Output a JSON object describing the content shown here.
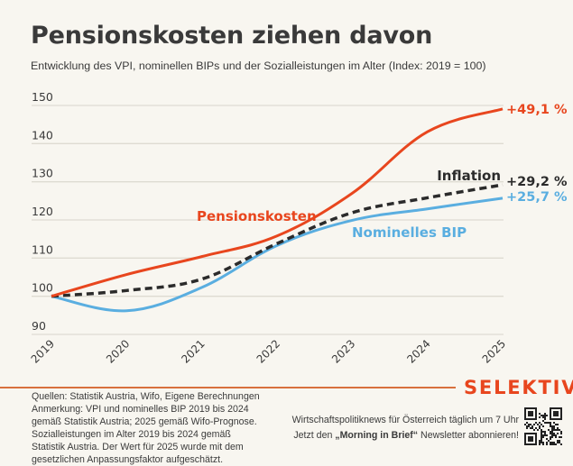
{
  "header": {
    "title": "Pensionskosten ziehen davon",
    "subtitle": "Entwicklung des VPI, nominellen BIPs und der Sozialleistungen im Alter (Index: 2019 = 100)"
  },
  "chart_data": {
    "type": "line",
    "title": "Pensionskosten ziehen davon",
    "subtitle": "Entwicklung des VPI, nominellen BIPs und der Sozialleistungen im Alter (Index: 2019 = 100)",
    "xlabel": "",
    "ylabel": "",
    "x": [
      "2019",
      "2020",
      "2021",
      "2022",
      "2023",
      "2024",
      "2025"
    ],
    "yticks": [
      90,
      100,
      110,
      120,
      130,
      140,
      150
    ],
    "ylim": [
      90,
      150
    ],
    "grid": true,
    "series": [
      {
        "name": "Pensionskosten",
        "values": [
          100,
          105.7,
          110.4,
          115.8,
          127.0,
          143.1,
          149.1
        ],
        "color": "#e8461e",
        "style": "solid",
        "end_label": "+49,1 %"
      },
      {
        "name": "Inflation",
        "values": [
          100,
          101.5,
          104.5,
          113.8,
          121.9,
          125.8,
          129.2
        ],
        "color": "#2b2b2b",
        "style": "dashed",
        "end_label": "+29,2 %"
      },
      {
        "name": "Nominelles BIP",
        "values": [
          100,
          96.2,
          102.3,
          113.3,
          119.9,
          122.9,
          125.7
        ],
        "color": "#5aaee0",
        "style": "solid",
        "end_label": "+25,7 %"
      }
    ],
    "legend": "inline labels next to lines"
  },
  "footer": {
    "notes": [
      "Quellen: Statistik Austria, Wifo, Eigene Berechnungen",
      "Anmerkung: VPI und nominelles BIP 2019 bis 2024",
      "gemäß Statistik Austria; 2025 gemäß Wifo-Prognose.",
      "Sozialleistungen im Alter 2019 bis 2024 gemäß",
      "Statistik Austria. Der Wert für 2025 wurde mit dem",
      "gesetzlichen Anpassungsfaktor aufgeschätzt."
    ],
    "logo": "SELEKTIV",
    "promo_line1": "Wirtschaftspolitiknews für Österreich täglich um 7 Uhr",
    "promo_line2_pre": "Jetzt den ",
    "promo_line2_bold": "„Morning in Brief“",
    "promo_line2_post": " Newsletter abonnieren!",
    "qr_icon": "qr-code-icon"
  },
  "colors": {
    "background": "#f8f6f0",
    "accent": "#e8461e",
    "blue": "#5aaee0",
    "dark": "#2b2b2b",
    "grid": "#dedbd2"
  }
}
